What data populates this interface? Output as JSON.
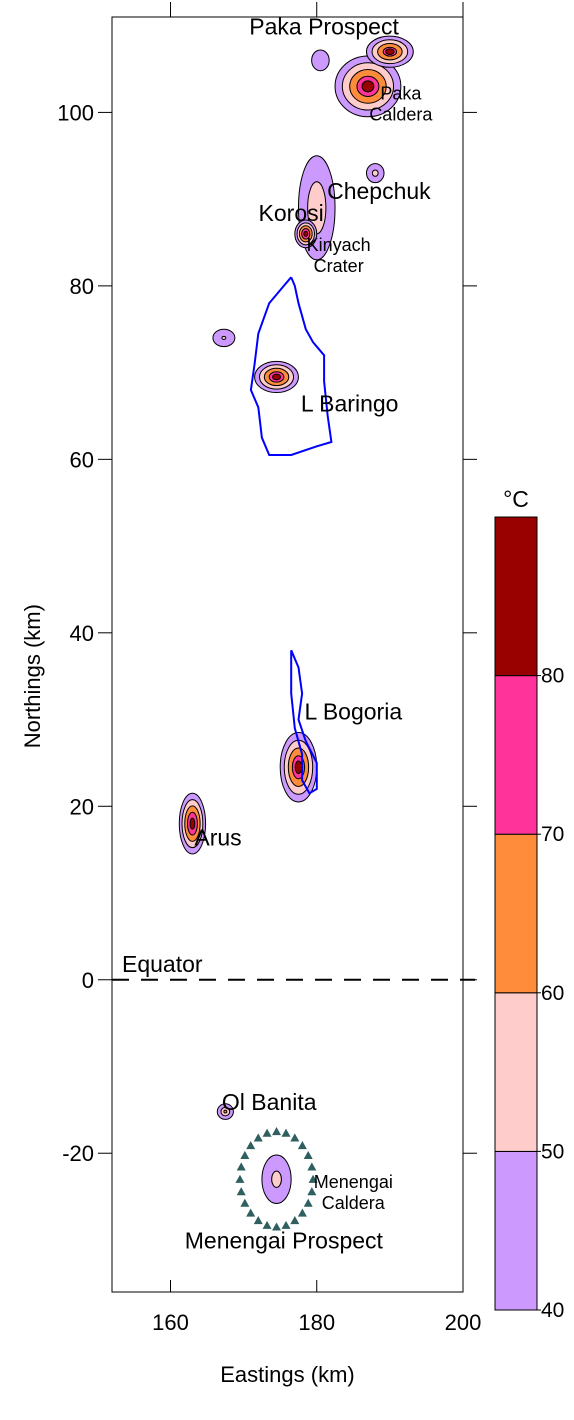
{
  "chart_data": {
    "type": "contour",
    "xlabel": "Eastings (km)",
    "ylabel": "Northings (km)",
    "xlim": [
      152,
      200
    ],
    "ylim": [
      -36,
      111
    ],
    "xticks": [
      {
        "value": 160,
        "label": "160"
      },
      {
        "value": 180,
        "label": "180"
      },
      {
        "value": 200,
        "label": "200"
      }
    ],
    "yticks": [
      {
        "value": -20,
        "label": "-20"
      },
      {
        "value": 0,
        "label": "0"
      },
      {
        "value": 20,
        "label": "20"
      },
      {
        "value": 40,
        "label": "40"
      },
      {
        "value": 60,
        "label": "60"
      },
      {
        "value": 80,
        "label": "80"
      },
      {
        "value": 100,
        "label": "100"
      }
    ],
    "colorbar": {
      "unit": "°C",
      "range": [
        40,
        90
      ],
      "bands": [
        {
          "from": 40,
          "to": 50,
          "color": "#cc99ff"
        },
        {
          "from": 50,
          "to": 60,
          "color": "#ffcccc"
        },
        {
          "from": 60,
          "to": 70,
          "color": "#ff8c3a"
        },
        {
          "from": 70,
          "to": 80,
          "color": "#ff3399"
        },
        {
          "from": 80,
          "to": 90,
          "color": "#990000"
        }
      ],
      "tick_labels": [
        {
          "value": 40,
          "label": "40"
        },
        {
          "value": 50,
          "label": "50"
        },
        {
          "value": 60,
          "label": "60"
        },
        {
          "value": 70,
          "label": "70"
        },
        {
          "value": 80,
          "label": "80"
        }
      ]
    },
    "equator": {
      "label": "Equator",
      "y": 0
    },
    "places": [
      {
        "lines": [
          "Paka Prospect"
        ],
        "x": 181,
        "y": 109,
        "size": "large"
      },
      {
        "lines": [
          "Paka",
          "Caldera"
        ],
        "x": 191.5,
        "y": 101.5,
        "size": "small"
      },
      {
        "lines": [
          "Chepchuk"
        ],
        "x": 188.5,
        "y": 90,
        "size": "large"
      },
      {
        "lines": [
          "Korosi"
        ],
        "x": 176.5,
        "y": 87.5,
        "size": "large"
      },
      {
        "lines": [
          "Kinyach",
          "Crater"
        ],
        "x": 183,
        "y": 84,
        "size": "small"
      },
      {
        "lines": [
          "L Baringo"
        ],
        "x": 184.5,
        "y": 65.5,
        "size": "large"
      },
      {
        "lines": [
          "L Bogoria"
        ],
        "x": 185,
        "y": 30,
        "size": "large"
      },
      {
        "lines": [
          "Arus"
        ],
        "x": 166.5,
        "y": 15.5,
        "size": "large"
      },
      {
        "lines": [
          "Ol Banita"
        ],
        "x": 173.5,
        "y": -15,
        "size": "large"
      },
      {
        "lines": [
          "Menengai",
          "Caldera"
        ],
        "x": 185,
        "y": -24,
        "size": "small"
      },
      {
        "lines": [
          "Menengai Prospect"
        ],
        "x": 175.5,
        "y": -31,
        "size": "large"
      }
    ],
    "anomalies": [
      {
        "name": "Paka",
        "x": 187,
        "y": 103,
        "rx": 4.5,
        "ry": 3.5,
        "max_temp": 85
      },
      {
        "name": "Paka NE",
        "x": 190,
        "y": 107,
        "rx": 3.2,
        "ry": 1.8,
        "max_temp": 82
      },
      {
        "name": "Paka N",
        "x": 180.5,
        "y": 106,
        "rx": 1.2,
        "ry": 1.2,
        "max_temp": 45
      },
      {
        "name": "Korosi",
        "x": 180,
        "y": 89,
        "rx": 2.5,
        "ry": 6,
        "max_temp": 60
      },
      {
        "name": "Kinyach",
        "x": 178.5,
        "y": 86,
        "rx": 1.5,
        "ry": 1.6,
        "max_temp": 88
      },
      {
        "name": "Chepchuk",
        "x": 188,
        "y": 93,
        "rx": 1.2,
        "ry": 1.1,
        "max_temp": 55
      },
      {
        "name": "Baringo W",
        "x": 167.3,
        "y": 74,
        "rx": 1.5,
        "ry": 1,
        "max_temp": 52
      },
      {
        "name": "Baringo",
        "x": 174.5,
        "y": 69.5,
        "rx": 3,
        "ry": 1.8,
        "max_temp": 85
      },
      {
        "name": "Bogoria",
        "x": 177.5,
        "y": 24.5,
        "rx": 2.5,
        "ry": 4,
        "max_temp": 85
      },
      {
        "name": "Arus",
        "x": 163,
        "y": 18,
        "rx": 1.8,
        "ry": 3.5,
        "max_temp": 88
      },
      {
        "name": "Ol Banita",
        "x": 167.5,
        "y": -15.2,
        "rx": 1.1,
        "ry": 0.9,
        "max_temp": 62
      },
      {
        "name": "Menengai",
        "x": 174.5,
        "y": -23,
        "rx": 2,
        "ry": 2.8,
        "max_temp": 55
      }
    ],
    "lake_outlines": [
      {
        "name": "L Baringo",
        "color": "#0000ff",
        "points": [
          [
            176.5,
            81
          ],
          [
            177,
            80
          ],
          [
            177.5,
            78
          ],
          [
            178.5,
            75
          ],
          [
            179.5,
            73.5
          ],
          [
            181,
            72
          ],
          [
            181,
            69
          ],
          [
            181.5,
            65
          ],
          [
            182,
            62
          ],
          [
            180,
            61.5
          ],
          [
            176.5,
            60.5
          ],
          [
            173.5,
            60.5
          ],
          [
            172.5,
            62.5
          ],
          [
            172,
            66
          ],
          [
            171,
            68
          ],
          [
            171.5,
            71
          ],
          [
            172,
            74.5
          ],
          [
            173.5,
            78
          ],
          [
            175.5,
            80
          ],
          [
            176.5,
            81
          ]
        ]
      },
      {
        "name": "L Bogoria",
        "color": "#0000ff",
        "points": [
          [
            176.5,
            38
          ],
          [
            177.5,
            36
          ],
          [
            178,
            33
          ],
          [
            177.5,
            30
          ],
          [
            178.5,
            27.5
          ],
          [
            180,
            25
          ],
          [
            180,
            22
          ],
          [
            179,
            21.5
          ],
          [
            178,
            23
          ],
          [
            178,
            26
          ],
          [
            177,
            29
          ],
          [
            176.5,
            33
          ],
          [
            176.5,
            38
          ]
        ]
      }
    ],
    "caldera_ring": {
      "name": "Menengai Caldera",
      "cx": 174.5,
      "cy": -23,
      "rx": 5,
      "ry": 5.5,
      "color": "#2f5f5f",
      "count": 24
    }
  }
}
